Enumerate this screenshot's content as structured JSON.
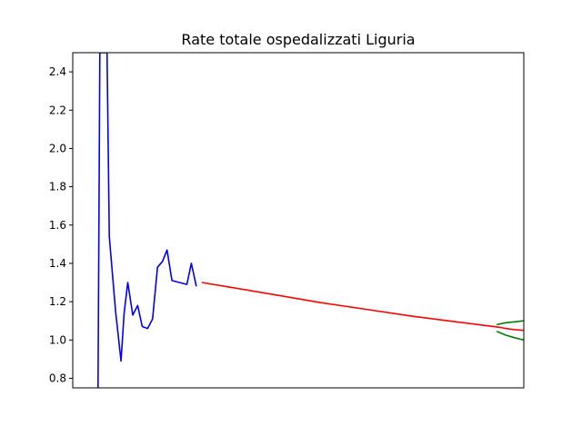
{
  "chart_data": {
    "type": "line",
    "title": "Rate totale ospedalizzati Liguria",
    "xlabel": "",
    "ylabel": "",
    "xlim": [
      0,
      100
    ],
    "ylim": [
      0.75,
      2.5
    ],
    "x_ticks_visible": false,
    "y_ticks": [
      0.8,
      1.0,
      1.2,
      1.4,
      1.6,
      1.8,
      2.0,
      2.2,
      2.4
    ],
    "y_tick_labels": [
      "0.8",
      "1.0",
      "1.2",
      "1.4",
      "1.6",
      "1.8",
      "2.0",
      "2.2",
      "2.4"
    ],
    "grid": false,
    "legend": "none",
    "series": [
      {
        "color": "#0000ff",
        "points": [
          [
            5.6,
            0.75
          ],
          [
            6.0,
            2.5
          ],
          [
            7.6,
            2.5
          ],
          [
            8.1,
            1.54
          ],
          [
            9.5,
            1.15
          ],
          [
            10.7,
            0.89
          ],
          [
            11.4,
            1.14
          ],
          [
            12.2,
            1.3
          ],
          [
            13.3,
            1.13
          ],
          [
            14.4,
            1.18
          ],
          [
            15.4,
            1.07
          ],
          [
            16.6,
            1.06
          ],
          [
            17.7,
            1.11
          ],
          [
            18.8,
            1.38
          ],
          [
            19.9,
            1.41
          ],
          [
            20.9,
            1.47
          ],
          [
            22.0,
            1.31
          ],
          [
            25.3,
            1.29
          ],
          [
            26.3,
            1.4
          ],
          [
            27.4,
            1.28
          ]
        ]
      },
      {
        "color": "#ff0000",
        "points": [
          [
            28.6,
            1.3
          ],
          [
            35,
            1.275
          ],
          [
            45,
            1.235
          ],
          [
            55,
            1.195
          ],
          [
            65,
            1.16
          ],
          [
            75,
            1.125
          ],
          [
            85,
            1.095
          ],
          [
            90,
            1.08
          ],
          [
            95,
            1.065
          ],
          [
            96,
            1.06
          ],
          [
            97,
            1.057
          ],
          [
            98,
            1.054
          ],
          [
            99,
            1.052
          ],
          [
            100,
            1.05
          ]
        ]
      },
      {
        "color": "#008000",
        "points": [
          [
            94,
            1.08
          ],
          [
            96,
            1.09
          ],
          [
            98,
            1.095
          ],
          [
            100,
            1.1
          ]
        ]
      },
      {
        "color": "#008000",
        "points": [
          [
            94,
            1.045
          ],
          [
            96,
            1.025
          ],
          [
            98,
            1.012
          ],
          [
            100,
            1.0
          ]
        ]
      }
    ]
  }
}
